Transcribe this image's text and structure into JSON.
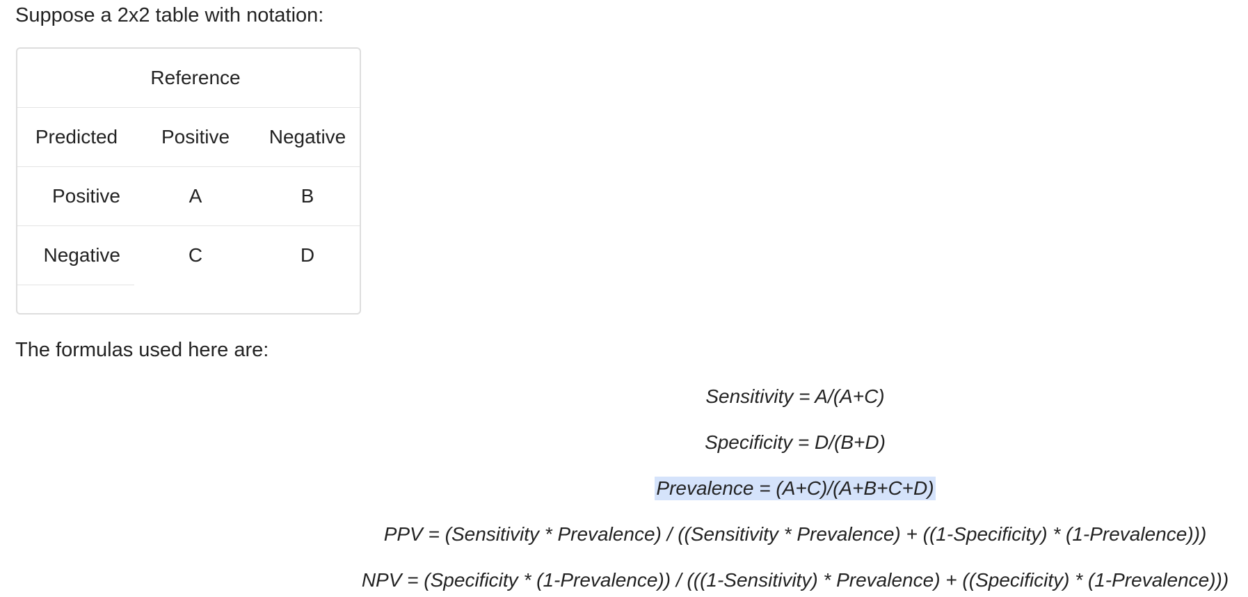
{
  "intro_text": "Suppose a 2x2 table with notation:",
  "table": {
    "reference_header": "Reference",
    "header_row": [
      "Predicted",
      "Positive",
      "Negative"
    ],
    "rows": [
      [
        "Positive",
        "A",
        "B"
      ],
      [
        "Negative",
        "C",
        "D"
      ]
    ]
  },
  "formulas_intro": "The formulas used here are:",
  "formulas": [
    "Sensitivity = A/(A+C)",
    "Specificity = D/(B+D)",
    "Prevalence = (A+C)/(A+B+C+D)",
    "PPV = (Sensitivity * Prevalence) / ((Sensitivity * Prevalence) + ((1-Specificity) * (1-Prevalence)))",
    "NPV = (Specificity * (1-Prevalence)) / (((1-Sensitivity) * Prevalence) + ((Specificity) * (1-Prevalence)))"
  ],
  "highlighted_formula_index": 2,
  "colors": {
    "selection_highlight": "#d5e3fb",
    "table_border": "#dddddd"
  }
}
